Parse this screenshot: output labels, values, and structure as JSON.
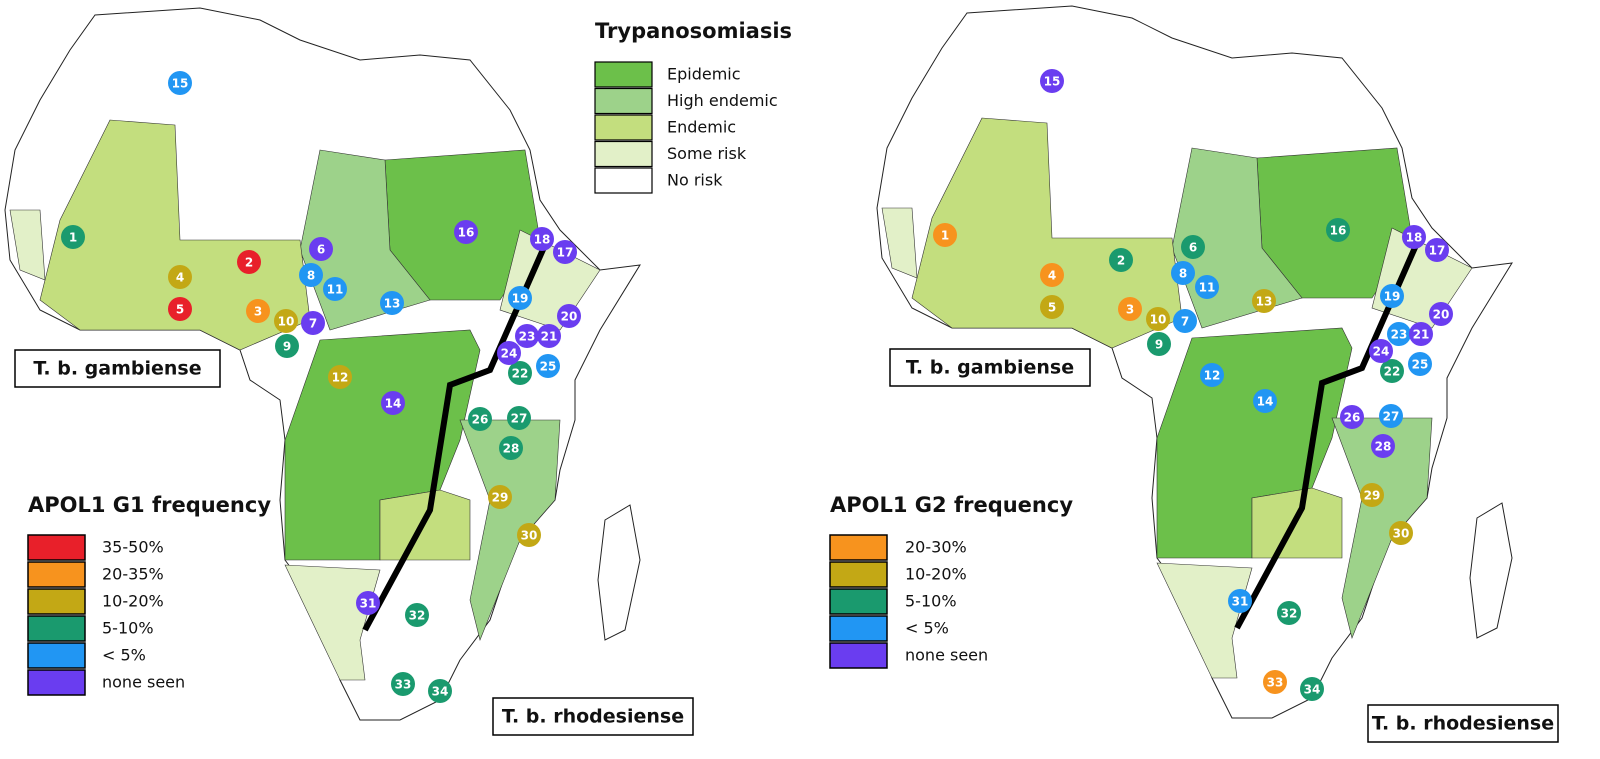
{
  "trypanosomiasis_legend": {
    "title": "Trypanosomiasis",
    "items": [
      {
        "label": "Epidemic",
        "color": "#6cc04a"
      },
      {
        "label": "High endemic",
        "color": "#9dd28a"
      },
      {
        "label": "Endemic",
        "color": "#c3de7e"
      },
      {
        "label": "Some risk",
        "color": "#e2f0c8"
      },
      {
        "label": "No risk",
        "color": "#ffffff"
      }
    ]
  },
  "maps": [
    {
      "legend": {
        "title": "APOL1 G1 frequency",
        "items": [
          {
            "label": "35-50%",
            "color": "#e8202a",
            "markers": [
              "2",
              "5"
            ]
          },
          {
            "label": "20-35%",
            "color": "#f7931e",
            "markers": [
              "3"
            ]
          },
          {
            "label": "10-20%",
            "color": "#c3a815",
            "markers": [
              "4",
              "10",
              "12",
              "29",
              "30"
            ]
          },
          {
            "label": "5-10%",
            "color": "#1a9a6e",
            "markers": [
              "1",
              "9",
              "22",
              "26",
              "27",
              "28",
              "32",
              "33",
              "34"
            ]
          },
          {
            "label": "< 5%",
            "color": "#2196f3",
            "markers": [
              "8",
              "11",
              "13",
              "15",
              "19",
              "25"
            ]
          },
          {
            "label": "none seen",
            "color": "#6a3df0",
            "markers": [
              "6",
              "7",
              "14",
              "16",
              "17",
              "18",
              "20",
              "21",
              "23",
              "24",
              "31"
            ]
          }
        ]
      },
      "subspecies_labels": [
        "T. b. gambiense",
        "T. b. rhodesiense"
      ]
    },
    {
      "legend": {
        "title": "APOL1 G2 frequency",
        "items": [
          {
            "label": "20-30%",
            "color": "#f7931e",
            "markers": [
              "1",
              "3",
              "4",
              "33"
            ]
          },
          {
            "label": "10-20%",
            "color": "#c3a815",
            "markers": [
              "5",
              "10",
              "13",
              "29",
              "30"
            ]
          },
          {
            "label": "5-10%",
            "color": "#1a9a6e",
            "markers": [
              "2",
              "6",
              "9",
              "16",
              "22",
              "32",
              "34"
            ]
          },
          {
            "label": "< 5%",
            "color": "#2196f3",
            "markers": [
              "7",
              "8",
              "11",
              "12",
              "14",
              "19",
              "23",
              "25",
              "27",
              "31"
            ]
          },
          {
            "label": "none seen",
            "color": "#6a3df0",
            "markers": [
              "15",
              "17",
              "18",
              "20",
              "21",
              "24",
              "26",
              "28"
            ]
          }
        ]
      },
      "subspecies_labels": [
        "T. b. gambiense",
        "T. b. rhodesiense"
      ]
    }
  ]
}
